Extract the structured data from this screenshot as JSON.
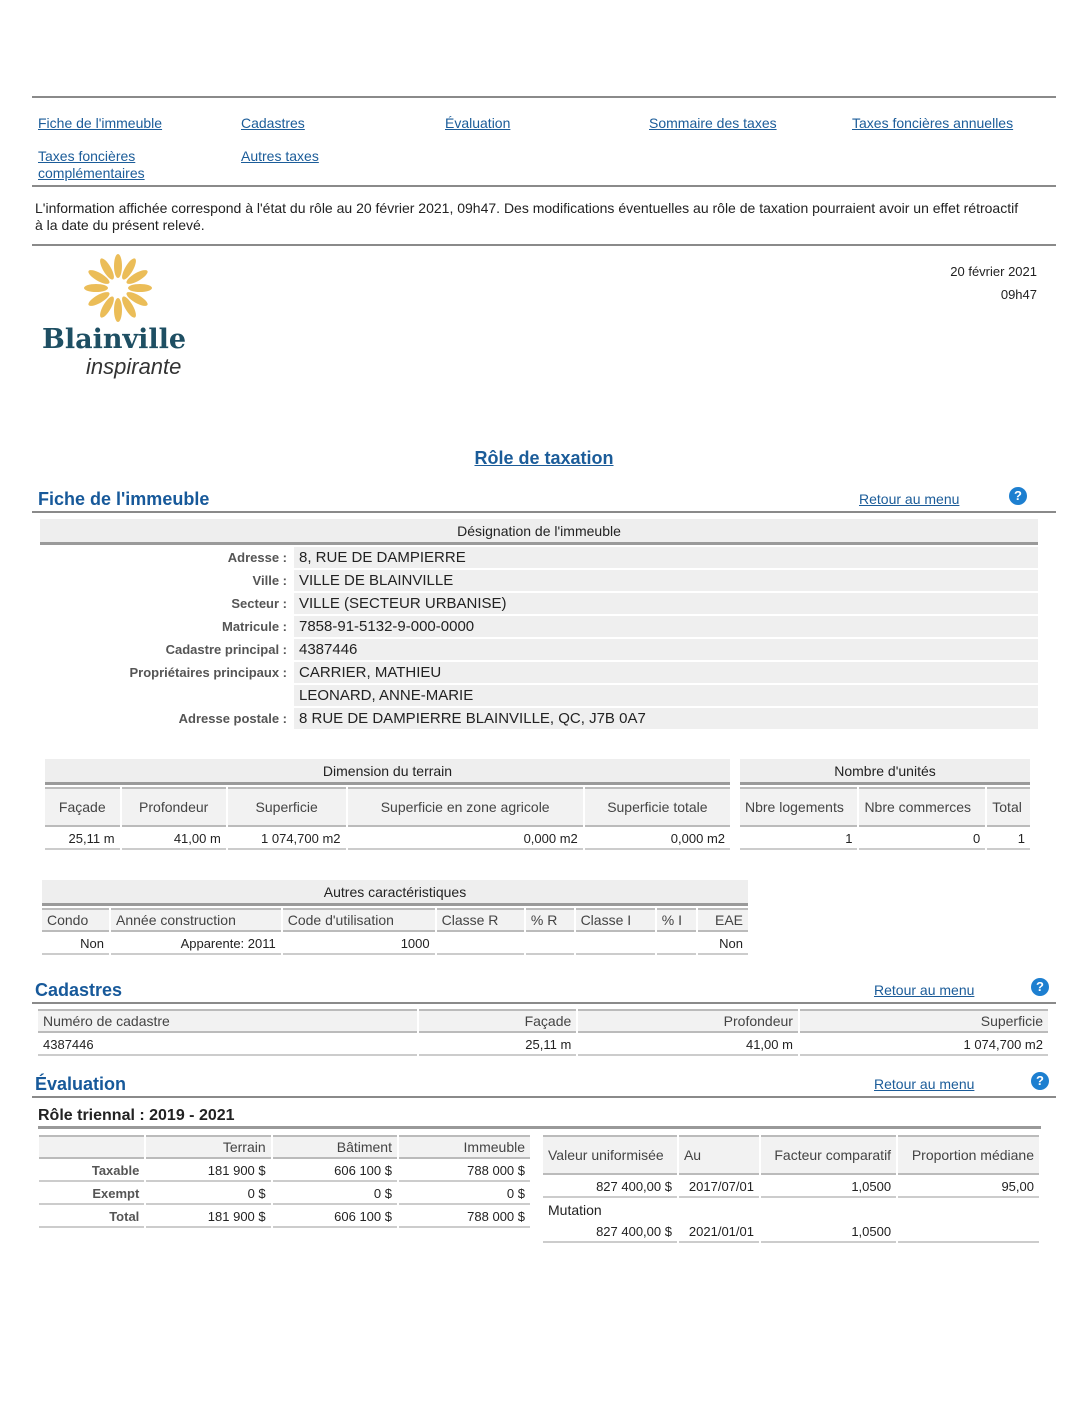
{
  "nav": [
    "Fiche de l'immeuble",
    "Cadastres",
    "Évaluation",
    "Sommaire des taxes",
    "Taxes foncières annuelles",
    "Taxes foncières complémentaires",
    "Autres taxes"
  ],
  "notice": "L'information affichée correspond à l'état du rôle au 20 février 2021, 09h47. Des modifications éventuelles au rôle de taxation pourraient avoir un effet rétroactif à la date du présent relevé.",
  "logo": {
    "name": "Blainville",
    "tagline": "inspirante"
  },
  "date": "20 février 2021",
  "time": "09h47",
  "page_title": "Rôle de taxation",
  "retour": "Retour au menu",
  "help": "?",
  "fiche": {
    "title": "Fiche de l'immeuble",
    "designation": "Désignation de l'immeuble",
    "rows": [
      [
        "Adresse :",
        "8, RUE DE DAMPIERRE"
      ],
      [
        "Ville :",
        "VILLE DE BLAINVILLE"
      ],
      [
        "Secteur :",
        "VILLE  (SECTEUR URBANISE)"
      ],
      [
        "Matricule :",
        "7858-91-5132-9-000-0000"
      ],
      [
        "Cadastre principal :",
        "4387446"
      ],
      [
        "Propriétaires principaux :",
        "CARRIER, MATHIEU"
      ],
      [
        "",
        "LEONARD, ANNE-MARIE"
      ],
      [
        "Adresse postale :",
        "8 RUE DE DAMPIERRE BLAINVILLE, QC, J7B 0A7"
      ]
    ]
  },
  "dimension": {
    "title": "Dimension du terrain",
    "headers": [
      "Façade",
      "Profondeur",
      "Superficie",
      "Superficie en zone agricole",
      "Superficie totale"
    ],
    "values": [
      "25,11 m",
      "41,00 m",
      "1 074,700 m2",
      "0,000 m2",
      "0,000 m2"
    ]
  },
  "unites": {
    "title": "Nombre d'unités",
    "headers": [
      "Nbre logements",
      "Nbre commerces",
      "Total"
    ],
    "values": [
      "1",
      "0",
      "1"
    ]
  },
  "autres": {
    "title": "Autres caractéristiques",
    "headers": [
      "Condo",
      "Année construction",
      "Code d'utilisation",
      "Classe R",
      "% R",
      "Classe I",
      "% I",
      "EAE"
    ],
    "values": [
      "Non",
      "Apparente: 2011",
      "1000",
      "",
      "",
      "",
      "",
      "Non"
    ]
  },
  "cadastres": {
    "title": "Cadastres",
    "headers": [
      "Numéro de cadastre",
      "Façade",
      "Profondeur",
      "Superficie"
    ],
    "values": [
      "4387446",
      "25,11 m",
      "41,00 m",
      "1 074,700 m2"
    ]
  },
  "evaluation": {
    "title": "Évaluation",
    "subtitle": "Rôle triennal : 2019 - 2021",
    "headers": [
      "",
      "Terrain",
      "Bâtiment",
      "Immeuble"
    ],
    "rows": [
      [
        "Taxable",
        "181 900 $",
        "606 100 $",
        "788 000 $"
      ],
      [
        "Exempt",
        "0 $",
        "0 $",
        "0 $"
      ],
      [
        "Total",
        "181 900 $",
        "606 100 $",
        "788 000 $"
      ]
    ],
    "uni_headers": [
      "Valeur uniformisée",
      "Au",
      "Facteur comparatif",
      "Proportion médiane"
    ],
    "uni_values": [
      "827 400,00 $",
      "2017/07/01",
      "1,0500",
      "95,00"
    ],
    "mutation_label": "Mutation",
    "mutation_values": [
      "827 400,00 $",
      "2021/01/01",
      "1,0500",
      ""
    ]
  }
}
